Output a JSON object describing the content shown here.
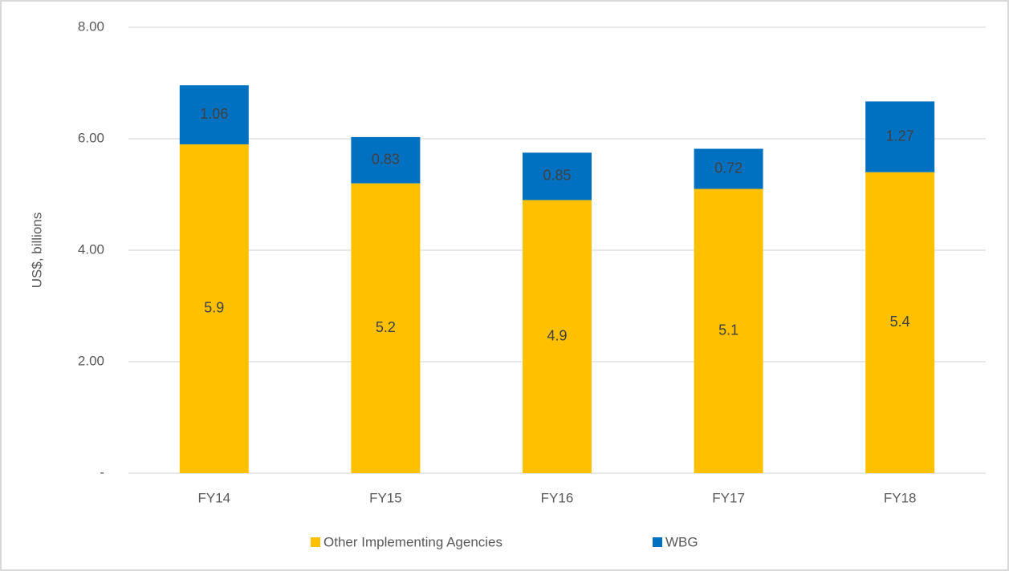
{
  "chart_data": {
    "type": "stacked_bar",
    "y_label": "US$, billions",
    "categories": [
      "FY14",
      "FY15",
      "FY16",
      "FY17",
      "FY18"
    ],
    "series": [
      {
        "name": "Other Implementing Agencies",
        "color": "#FFC000",
        "values": [
          5.9,
          5.2,
          4.9,
          5.1,
          5.4
        ]
      },
      {
        "name": "WBG",
        "color": "#0070C0",
        "values": [
          1.06,
          0.83,
          0.85,
          0.72,
          1.27
        ]
      }
    ],
    "ylim": [
      0,
      8
    ],
    "yticks": [
      {
        "value": 0,
        "label": "-"
      },
      {
        "value": 2,
        "label": "2.00"
      },
      {
        "value": 4,
        "label": "4.00"
      },
      {
        "value": 6,
        "label": "6.00"
      },
      {
        "value": 8,
        "label": "8.00"
      }
    ],
    "grid": true,
    "legend": "bottom"
  }
}
